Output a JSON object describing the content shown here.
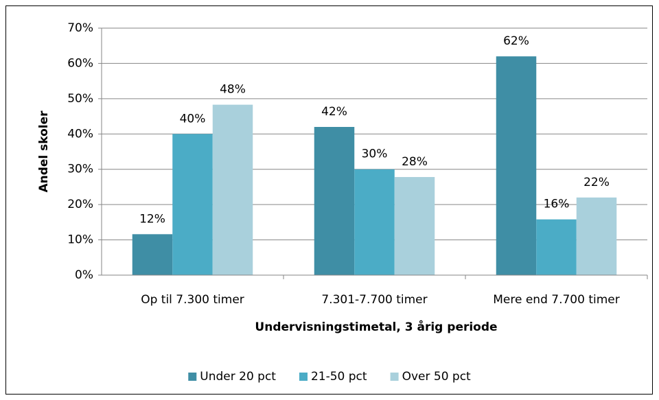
{
  "chart_data": {
    "type": "bar",
    "categories": [
      "Op til 7.300 timer",
      "7.301-7.700 timer",
      "Mere end 7.700 timer"
    ],
    "series": [
      {
        "name": "Under 20 pct",
        "color": "#3f8ea5",
        "values": [
          11.6,
          42,
          62
        ],
        "value_labels": [
          "12%",
          "42%",
          "62%"
        ]
      },
      {
        "name": "21-50 pct",
        "color": "#4bacc6",
        "values": [
          40,
          30,
          15.8
        ],
        "value_labels": [
          "40%",
          "30%",
          "16%"
        ]
      },
      {
        "name": "Over 50 pct",
        "color": "#a9d0dc",
        "values": [
          48.3,
          27.8,
          22
        ],
        "value_labels": [
          "48%",
          "28%",
          "22%"
        ]
      }
    ],
    "x_label": "Undervisningstimetal, 3 årig periode",
    "y_label": "Andel skoler",
    "ylim": [
      0,
      70
    ],
    "yticks": [
      {
        "value": 0,
        "label": "0%"
      },
      {
        "value": 10,
        "label": "10%"
      },
      {
        "value": 20,
        "label": "20%"
      },
      {
        "value": 30,
        "label": "30%"
      },
      {
        "value": 40,
        "label": "40%"
      },
      {
        "value": 50,
        "label": "50%"
      },
      {
        "value": 60,
        "label": "60%"
      },
      {
        "value": 70,
        "label": "70%"
      }
    ],
    "grid": true,
    "legend": "bottom"
  }
}
